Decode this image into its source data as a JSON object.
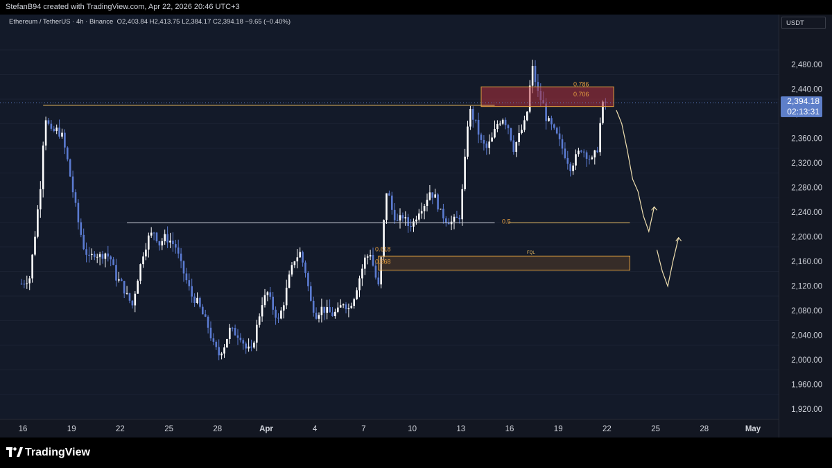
{
  "header": {
    "credit": "StefanB94 created with TradingView.com, Apr 22, 2026 20:46 UTC+3"
  },
  "legend": {
    "symbol": "Ethereum / TetherUS · 4h · Binance",
    "open": "O2,403.84",
    "high": "H2,413.75",
    "low": "L2,384.17",
    "close": "C2,394.18",
    "change": "−9.65 (−0.40%)"
  },
  "currency": "USDT",
  "last_price": {
    "price": "2,394.18",
    "countdown": "02:13:31"
  },
  "footer": {
    "brand": "TradingView"
  },
  "chart_data": {
    "type": "candlestick",
    "symbol": "ETHUSDT",
    "interval": "4h",
    "exchange": "Binance",
    "y_ticks": [
      1920,
      1960,
      2000,
      2040,
      2080,
      2120,
      2160,
      2200,
      2240,
      2280,
      2320,
      2360,
      2400,
      2440,
      2480
    ],
    "y_tick_labels": [
      "1,920.00",
      "1,960.00",
      "2,000.00",
      "2,040.00",
      "2,080.00",
      "2,120.00",
      "2,160.00",
      "2,200.00",
      "2,240.00",
      "2,280.00",
      "2,320.00",
      "2,360.00",
      "2,400.00",
      "2,440.00",
      "2,480.00"
    ],
    "x_ticks": [
      {
        "label": "16",
        "bar": 0
      },
      {
        "label": "19",
        "bar": 18
      },
      {
        "label": "22",
        "bar": 36
      },
      {
        "label": "25",
        "bar": 54
      },
      {
        "label": "28",
        "bar": 72
      },
      {
        "label": "Apr",
        "bar": 90
      },
      {
        "label": "4",
        "bar": 108
      },
      {
        "label": "7",
        "bar": 126
      },
      {
        "label": "10",
        "bar": 144
      },
      {
        "label": "13",
        "bar": 162
      },
      {
        "label": "16",
        "bar": 180
      },
      {
        "label": "19",
        "bar": 198
      },
      {
        "label": "22",
        "bar": 216
      },
      {
        "label": "25",
        "bar": 234
      },
      {
        "label": "28",
        "bar": 252
      },
      {
        "label": "May",
        "bar": 270
      }
    ],
    "last_price": 2394.18,
    "close_path": [
      [
        0,
        2100
      ],
      [
        3,
        2110
      ],
      [
        5,
        2180
      ],
      [
        7,
        2260
      ],
      [
        8,
        2330
      ],
      [
        9,
        2370
      ],
      [
        11,
        2345
      ],
      [
        13,
        2350
      ],
      [
        15,
        2340
      ],
      [
        17,
        2300
      ],
      [
        19,
        2250
      ],
      [
        21,
        2200
      ],
      [
        23,
        2160
      ],
      [
        25,
        2140
      ],
      [
        27,
        2150
      ],
      [
        29,
        2145
      ],
      [
        31,
        2150
      ],
      [
        33,
        2140
      ],
      [
        35,
        2110
      ],
      [
        37,
        2100
      ],
      [
        39,
        2080
      ],
      [
        41,
        2065
      ],
      [
        43,
        2110
      ],
      [
        45,
        2150
      ],
      [
        47,
        2175
      ],
      [
        49,
        2185
      ],
      [
        51,
        2165
      ],
      [
        53,
        2175
      ],
      [
        55,
        2170
      ],
      [
        57,
        2160
      ],
      [
        59,
        2130
      ],
      [
        61,
        2105
      ],
      [
        63,
        2080
      ],
      [
        65,
        2070
      ],
      [
        67,
        2050
      ],
      [
        69,
        2030
      ],
      [
        71,
        2000
      ],
      [
        73,
        1985
      ],
      [
        75,
        2000
      ],
      [
        77,
        2025
      ],
      [
        79,
        2020
      ],
      [
        81,
        2015
      ],
      [
        83,
        1995
      ],
      [
        85,
        1990
      ],
      [
        87,
        2030
      ],
      [
        89,
        2070
      ],
      [
        91,
        2085
      ],
      [
        93,
        2060
      ],
      [
        95,
        2040
      ],
      [
        97,
        2070
      ],
      [
        99,
        2110
      ],
      [
        101,
        2140
      ],
      [
        103,
        2150
      ],
      [
        105,
        2120
      ],
      [
        107,
        2070
      ],
      [
        109,
        2050
      ],
      [
        111,
        2060
      ],
      [
        113,
        2055
      ],
      [
        115,
        2050
      ],
      [
        117,
        2055
      ],
      [
        119,
        2070
      ],
      [
        121,
        2060
      ],
      [
        123,
        2080
      ],
      [
        125,
        2110
      ],
      [
        127,
        2140
      ],
      [
        129,
        2150
      ],
      [
        131,
        2110
      ],
      [
        132,
        2095
      ],
      [
        133,
        2140
      ],
      [
        134,
        2200
      ],
      [
        135,
        2250
      ],
      [
        136,
        2240
      ],
      [
        137,
        2220
      ],
      [
        139,
        2200
      ],
      [
        141,
        2210
      ],
      [
        143,
        2195
      ],
      [
        145,
        2200
      ],
      [
        147,
        2220
      ],
      [
        149,
        2230
      ],
      [
        151,
        2250
      ],
      [
        153,
        2240
      ],
      [
        155,
        2215
      ],
      [
        157,
        2205
      ],
      [
        159,
        2200
      ],
      [
        161,
        2205
      ],
      [
        162,
        2210
      ],
      [
        163,
        2250
      ],
      [
        164,
        2300
      ],
      [
        165,
        2360
      ],
      [
        166,
        2380
      ],
      [
        168,
        2360
      ],
      [
        170,
        2330
      ],
      [
        172,
        2320
      ],
      [
        174,
        2335
      ],
      [
        176,
        2360
      ],
      [
        178,
        2370
      ],
      [
        180,
        2355
      ],
      [
        182,
        2320
      ],
      [
        184,
        2340
      ],
      [
        186,
        2360
      ],
      [
        187,
        2380
      ],
      [
        188,
        2420
      ],
      [
        189,
        2450
      ],
      [
        190,
        2430
      ],
      [
        191,
        2410
      ],
      [
        193,
        2390
      ],
      [
        194,
        2370
      ],
      [
        196,
        2355
      ],
      [
        198,
        2340
      ],
      [
        200,
        2320
      ],
      [
        202,
        2300
      ],
      [
        203,
        2290
      ],
      [
        205,
        2305
      ],
      [
        207,
        2320
      ],
      [
        209,
        2310
      ],
      [
        211,
        2300
      ],
      [
        213,
        2320
      ],
      [
        214,
        2360
      ],
      [
        215,
        2390
      ],
      [
        216,
        2394.18
      ]
    ],
    "drawings": {
      "hlines": [
        {
          "price": 2390,
          "from_bar": 8,
          "to_bar": 175,
          "color": "#f0c060"
        },
        {
          "price": 2199,
          "from_bar": 39,
          "to_bar": 175,
          "color": "#d1d4dc"
        },
        {
          "price": 2199,
          "from_bar": 180,
          "to_bar": 225,
          "color": "#f0c060"
        }
      ],
      "supply_zone": {
        "price_top": 2420,
        "price_bottom": 2388,
        "from_bar": 170,
        "to_bar": 219
      },
      "fvg_zone": {
        "price_top": 2145,
        "price_bottom": 2122,
        "from_bar": 132,
        "to_bar": 225
      },
      "fib_levels": [
        {
          "label": "0.786",
          "price": 2424
        },
        {
          "label": "0.706",
          "price": 2408
        },
        {
          "label": "0.5",
          "price": 2201
        },
        {
          "label": "0.618",
          "price": 2156
        },
        {
          "label": "0.668",
          "price": 2136
        }
      ],
      "fvg_label": "FQL",
      "projection_1": [
        [
          220,
          2382
        ],
        [
          222,
          2360
        ],
        [
          224,
          2318
        ],
        [
          226,
          2270
        ],
        [
          228,
          2250
        ],
        [
          230,
          2210
        ],
        [
          232,
          2185
        ],
        [
          234,
          2225
        ]
      ],
      "projection_2": [
        [
          235,
          2155
        ],
        [
          237,
          2120
        ],
        [
          239,
          2096
        ],
        [
          241,
          2138
        ],
        [
          243,
          2175
        ]
      ]
    }
  }
}
